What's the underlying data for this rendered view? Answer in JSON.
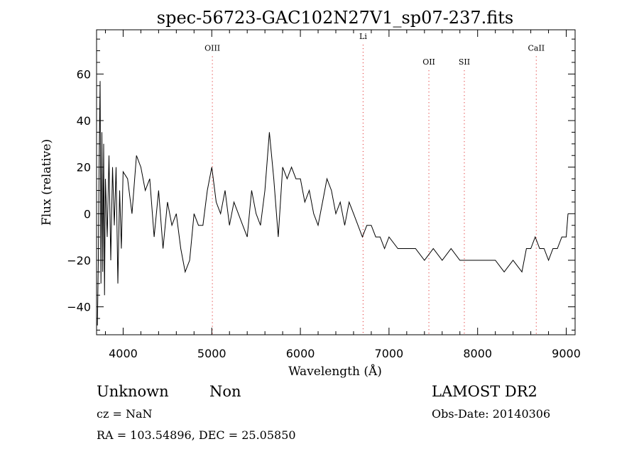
{
  "chart_data": {
    "type": "line",
    "title": "spec-56723-GAC102N27V1_sp07-237.fits",
    "xlabel": "Wavelength (Å)",
    "ylabel": "Flux (relative)",
    "xlim": [
      3700,
      9100
    ],
    "ylim": [
      -52,
      79
    ],
    "xticks": [
      4000,
      5000,
      6000,
      7000,
      8000,
      9000
    ],
    "yticks": [
      -40,
      -20,
      0,
      20,
      40,
      60
    ],
    "grid": false,
    "series": [
      {
        "x": [
          3710,
          3720,
          3730,
          3740,
          3750,
          3760,
          3770,
          3780,
          3790,
          3800,
          3820,
          3840,
          3860,
          3880,
          3900,
          3920,
          3940,
          3960,
          3980,
          4000,
          4050,
          4100,
          4150,
          4200,
          4250,
          4300,
          4350,
          4400,
          4450,
          4500,
          4550,
          4600,
          4650,
          4700,
          4750,
          4800,
          4850,
          4900,
          4950,
          5000,
          5050,
          5100,
          5150,
          5200,
          5250,
          5300,
          5350,
          5400,
          5450,
          5500,
          5550,
          5600,
          5650,
          5700,
          5750,
          5800,
          5850,
          5900,
          5950,
          6000,
          6050,
          6100,
          6150,
          6200,
          6250,
          6300,
          6350,
          6400,
          6450,
          6500,
          6550,
          6600,
          6650,
          6700,
          6750,
          6800,
          6850,
          6900,
          6950,
          7000,
          7100,
          7200,
          7300,
          7400,
          7500,
          7600,
          7700,
          7800,
          7900,
          8000,
          8100,
          8200,
          8300,
          8400,
          8500,
          8550,
          8600,
          8650,
          8700,
          8750,
          8800,
          8850,
          8900,
          8950,
          9000,
          9020
        ],
        "y": [
          -48,
          -20,
          25,
          57,
          -30,
          35,
          -25,
          30,
          -35,
          15,
          -10,
          25,
          -20,
          20,
          -5,
          20,
          -30,
          10,
          -15,
          18,
          15,
          0,
          25,
          20,
          10,
          15,
          -10,
          10,
          -15,
          5,
          -5,
          0,
          -15,
          -25,
          -20,
          0,
          -5,
          -5,
          10,
          20,
          5,
          0,
          10,
          -5,
          5,
          0,
          -5,
          -10,
          10,
          0,
          -5,
          10,
          35,
          15,
          -10,
          20,
          15,
          20,
          15,
          15,
          5,
          10,
          0,
          -5,
          5,
          15,
          10,
          0,
          5,
          -5,
          5,
          0,
          -5,
          -10,
          -5,
          -5,
          -10,
          -10,
          -15,
          -10,
          -15,
          -15,
          -15,
          -20,
          -15,
          -20,
          -15,
          -20,
          -20,
          -20,
          -20,
          -20,
          -25,
          -20,
          -25,
          -15,
          -15,
          -10,
          -15,
          -15,
          -20,
          -15,
          -15,
          -10,
          -10,
          0
        ]
      }
    ],
    "lines": [
      {
        "label": "OIII",
        "x": 5007,
        "label_y": 70
      },
      {
        "label": "Li",
        "x": 6708,
        "label_y": 75
      },
      {
        "label": "OII",
        "x": 7450,
        "label_y": 64
      },
      {
        "label": "SII",
        "x": 7850,
        "label_y": 64
      },
      {
        "label": "CaII",
        "x": 8662,
        "label_y": 70
      }
    ]
  },
  "info": {
    "class": "Unknown",
    "subclass": "Non",
    "survey": "LAMOST DR2",
    "cz": "cz = NaN",
    "obs_date": "Obs-Date: 20140306",
    "coords": "RA = 103.54896, DEC =  25.05850"
  },
  "colors": {
    "spectrum": "#000000",
    "line_marker": "#e03030",
    "axes": "#000000"
  }
}
